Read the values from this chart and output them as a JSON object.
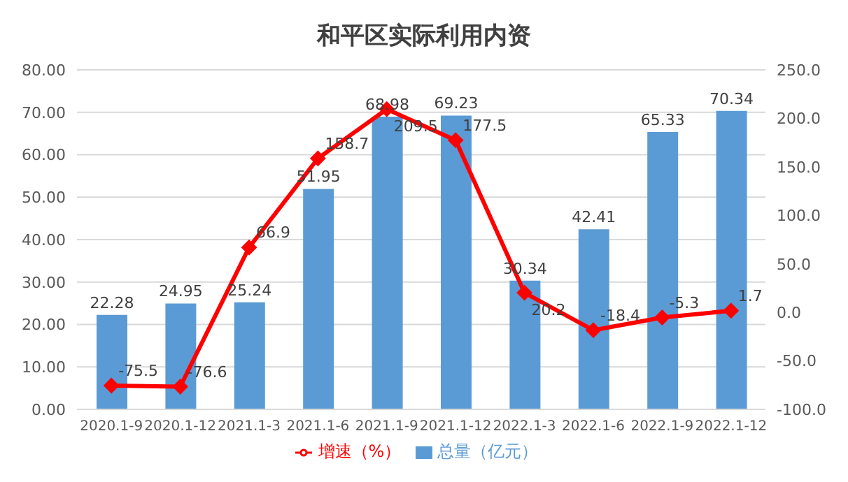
{
  "chart_data": {
    "type": "bar",
    "title": "和平区实际利用内资",
    "categories": [
      "2020.1-9",
      "2020.1-12",
      "2021.1-3",
      "2021.1-6",
      "2021.1-9",
      "2021.1-12",
      "2022.1-3",
      "2022.1-6",
      "2022.1-9",
      "2022.1-12"
    ],
    "series": [
      {
        "name": "总量（亿元）",
        "color": "#5b9bd5",
        "values": [
          22.28,
          24.95,
          25.24,
          51.95,
          68.98,
          69.23,
          30.34,
          42.41,
          65.33,
          70.34
        ]
      },
      {
        "name": "增速（%）",
        "type": "line",
        "axis": "y2",
        "color": "#ff0000",
        "marker": "diamond",
        "values": [
          -75.5,
          -76.6,
          66.9,
          158.7,
          209.5,
          177.5,
          20.2,
          -18.4,
          -5.3,
          1.7
        ]
      }
    ],
    "ylim": [
      0,
      80
    ],
    "yticks": [
      {
        "value": 0,
        "label": "0.00"
      },
      {
        "value": 10,
        "label": "10.00"
      },
      {
        "value": 20,
        "label": "20.00"
      },
      {
        "value": 30,
        "label": "30.00"
      },
      {
        "value": 40,
        "label": "40.00"
      },
      {
        "value": 50,
        "label": "50.00"
      },
      {
        "value": 60,
        "label": "60.00"
      },
      {
        "value": 70,
        "label": "70.00"
      },
      {
        "value": 80,
        "label": "80.00"
      }
    ],
    "y2lim": [
      -100,
      250
    ],
    "y2ticks": [
      {
        "value": -100,
        "label": "-100.0"
      },
      {
        "value": -50,
        "label": "-50.0"
      },
      {
        "value": 0,
        "label": "0.0"
      },
      {
        "value": 50,
        "label": "50.0"
      },
      {
        "value": 100,
        "label": "100.0"
      },
      {
        "value": 150,
        "label": "150.0"
      },
      {
        "value": 200,
        "label": "200.0"
      },
      {
        "value": 250,
        "label": "250.0"
      }
    ],
    "grid": "y",
    "legend": "bottom",
    "data_labels": true
  }
}
